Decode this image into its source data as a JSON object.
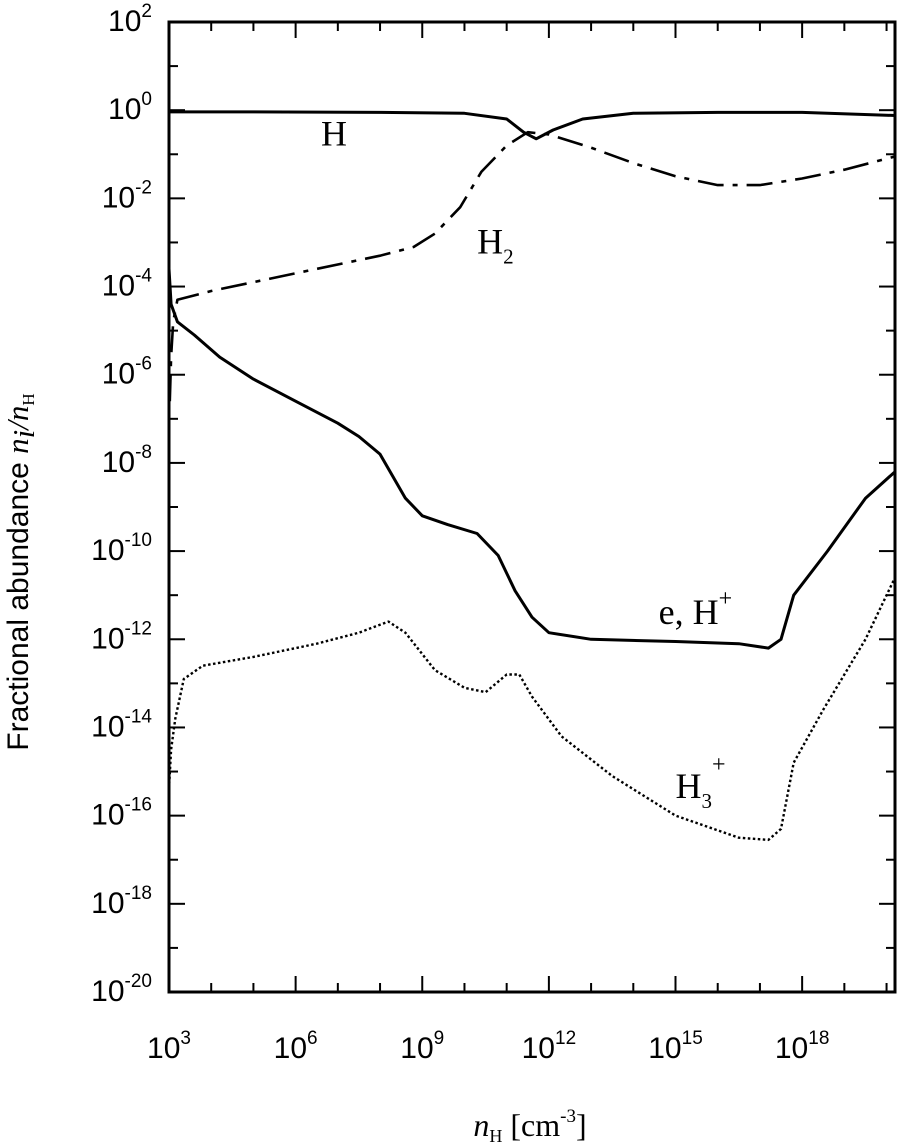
{
  "chart_data": {
    "type": "line",
    "title": "",
    "xlabel": {
      "symbol": "n",
      "subscript": "H",
      "unit_open": "[cm",
      "unit_exp": "-3",
      "unit_close": "]"
    },
    "ylabel": {
      "text": "Fractional abundance ",
      "symbol_i": "n",
      "sub_i": "i",
      "slash": "/",
      "symbol_h": "n",
      "sub_h": "H"
    },
    "xscale": "log",
    "yscale": "log",
    "xlim_exp": [
      3,
      20.2
    ],
    "ylim_exp": [
      -20,
      2
    ],
    "x_tick_labels": [
      {
        "base": "10",
        "exp": "3",
        "at_exp": 3
      },
      {
        "base": "10",
        "exp": "6",
        "at_exp": 6
      },
      {
        "base": "10",
        "exp": "9",
        "at_exp": 9
      },
      {
        "base": "10",
        "exp": "12",
        "at_exp": 12
      },
      {
        "base": "10",
        "exp": "15",
        "at_exp": 15
      },
      {
        "base": "10",
        "exp": "18",
        "at_exp": 18
      }
    ],
    "y_tick_labels": [
      {
        "base": "10",
        "exp": "2",
        "at_exp": 2
      },
      {
        "base": "10",
        "exp": "0",
        "at_exp": 0
      },
      {
        "base": "10",
        "exp": "-2",
        "at_exp": -2
      },
      {
        "base": "10",
        "exp": "-4",
        "at_exp": -4
      },
      {
        "base": "10",
        "exp": "-6",
        "at_exp": -6
      },
      {
        "base": "10",
        "exp": "-8",
        "at_exp": -8
      },
      {
        "base": "10",
        "exp": "-10",
        "at_exp": -10
      },
      {
        "base": "10",
        "exp": "-12",
        "at_exp": -12
      },
      {
        "base": "10",
        "exp": "-14",
        "at_exp": -14
      },
      {
        "base": "10",
        "exp": "-16",
        "at_exp": -16
      },
      {
        "base": "10",
        "exp": "-18",
        "at_exp": -18
      },
      {
        "base": "10",
        "exp": "-20",
        "at_exp": -20
      }
    ],
    "grid": false,
    "series": [
      {
        "name": "H",
        "style": "solid",
        "log_points": [
          [
            3,
            -0.04
          ],
          [
            5,
            -0.04
          ],
          [
            8,
            -0.05
          ],
          [
            10,
            -0.07
          ],
          [
            11,
            -0.2
          ],
          [
            11.4,
            -0.5
          ],
          [
            11.7,
            -0.65
          ],
          [
            12.1,
            -0.45
          ],
          [
            12.8,
            -0.2
          ],
          [
            14,
            -0.07
          ],
          [
            16,
            -0.05
          ],
          [
            18,
            -0.05
          ],
          [
            20.2,
            -0.12
          ]
        ]
      },
      {
        "name": "H2",
        "style": "dashdot",
        "log_points": [
          [
            3.02,
            -6.6
          ],
          [
            3.05,
            -5.6
          ],
          [
            3.1,
            -4.8
          ],
          [
            3.2,
            -4.3
          ],
          [
            4,
            -4.1
          ],
          [
            6,
            -3.7
          ],
          [
            8,
            -3.3
          ],
          [
            8.8,
            -3.1
          ],
          [
            9.3,
            -2.8
          ],
          [
            9.9,
            -2.2
          ],
          [
            10.4,
            -1.4
          ],
          [
            11,
            -0.8
          ],
          [
            11.5,
            -0.5
          ],
          [
            12,
            -0.55
          ],
          [
            13,
            -0.85
          ],
          [
            14,
            -1.2
          ],
          [
            15,
            -1.5
          ],
          [
            16,
            -1.7
          ],
          [
            17,
            -1.7
          ],
          [
            18,
            -1.55
          ],
          [
            19,
            -1.35
          ],
          [
            20.2,
            -1.05
          ]
        ]
      },
      {
        "name": "e, H+",
        "style": "solid",
        "log_points": [
          [
            3.0,
            -3.6
          ],
          [
            3.05,
            -4.4
          ],
          [
            3.2,
            -4.8
          ],
          [
            3.6,
            -5.1
          ],
          [
            4.2,
            -5.6
          ],
          [
            5,
            -6.1
          ],
          [
            6,
            -6.6
          ],
          [
            7,
            -7.1
          ],
          [
            7.5,
            -7.4
          ],
          [
            8,
            -7.8
          ],
          [
            8.6,
            -8.8
          ],
          [
            9,
            -9.2
          ],
          [
            9.6,
            -9.4
          ],
          [
            10.3,
            -9.6
          ],
          [
            10.8,
            -10.1
          ],
          [
            11.2,
            -10.9
          ],
          [
            11.6,
            -11.5
          ],
          [
            12,
            -11.85
          ],
          [
            13,
            -12.0
          ],
          [
            15,
            -12.05
          ],
          [
            16.5,
            -12.1
          ],
          [
            17.2,
            -12.2
          ],
          [
            17.5,
            -12.0
          ],
          [
            17.8,
            -11.0
          ],
          [
            18.6,
            -10.0
          ],
          [
            19.5,
            -8.8
          ],
          [
            20.2,
            -8.2
          ]
        ]
      },
      {
        "name": "H3+",
        "style": "dotted",
        "log_points": [
          [
            3.0,
            -15.4
          ],
          [
            3.05,
            -14.5
          ],
          [
            3.15,
            -13.8
          ],
          [
            3.35,
            -12.9
          ],
          [
            3.8,
            -12.6
          ],
          [
            5,
            -12.4
          ],
          [
            6.5,
            -12.1
          ],
          [
            7.5,
            -11.85
          ],
          [
            8.2,
            -11.6
          ],
          [
            8.6,
            -11.85
          ],
          [
            9.3,
            -12.7
          ],
          [
            10,
            -13.1
          ],
          [
            10.5,
            -13.2
          ],
          [
            11,
            -12.8
          ],
          [
            11.3,
            -12.8
          ],
          [
            11.6,
            -13.3
          ],
          [
            12.3,
            -14.2
          ],
          [
            13.5,
            -15.1
          ],
          [
            15,
            -16.0
          ],
          [
            16.5,
            -16.5
          ],
          [
            17.2,
            -16.55
          ],
          [
            17.5,
            -16.3
          ],
          [
            17.8,
            -14.8
          ],
          [
            18.5,
            -13.6
          ],
          [
            19.5,
            -12.0
          ],
          [
            20.2,
            -10.6
          ]
        ]
      }
    ],
    "annotations": [
      {
        "id": "H",
        "main": "H",
        "sub": "",
        "sup": "",
        "at": [
          6.6,
          -0.8
        ]
      },
      {
        "id": "H2",
        "main": "H",
        "sub": "2",
        "sup": "",
        "at": [
          10.3,
          -3.25
        ]
      },
      {
        "id": "eHplus",
        "main": "e, H",
        "sub": "",
        "sup": "+",
        "at": [
          14.6,
          -11.65
        ]
      },
      {
        "id": "H3plus",
        "main": "H",
        "sub": "3",
        "sup": "+",
        "at": [
          15.0,
          -15.6
        ]
      }
    ]
  }
}
